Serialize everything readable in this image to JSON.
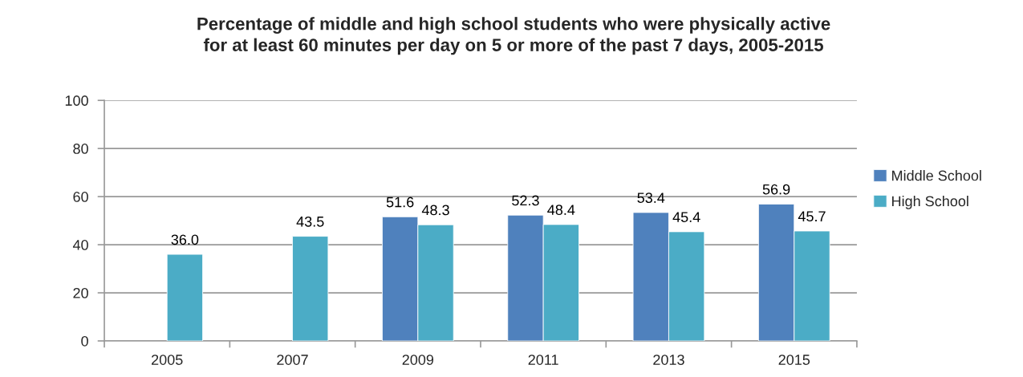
{
  "chart_data": {
    "type": "bar",
    "title": "Percentage of middle and high school students who were physically active\nfor at least 60 minutes per day on 5 or more of the past 7 days, 2005-2015",
    "categories": [
      "2005",
      "2007",
      "2009",
      "2011",
      "2013",
      "2015"
    ],
    "series": [
      {
        "name": "Middle School",
        "color": "#4f81bd",
        "values": [
          null,
          null,
          51.6,
          52.3,
          53.4,
          56.9
        ],
        "value_labels": [
          null,
          null,
          "51.6",
          "52.3",
          "53.4",
          "56.9"
        ]
      },
      {
        "name": "High School",
        "color": "#4bacc6",
        "values": [
          36.0,
          43.5,
          48.3,
          48.4,
          45.4,
          45.7
        ],
        "value_labels": [
          "36.0",
          "43.5",
          "48.3",
          "48.4",
          "45.4",
          "45.7"
        ]
      }
    ],
    "ylim": [
      0,
      100
    ],
    "yticks": [
      0,
      20,
      40,
      60,
      80,
      100
    ],
    "grid": "y",
    "legend": "right"
  }
}
